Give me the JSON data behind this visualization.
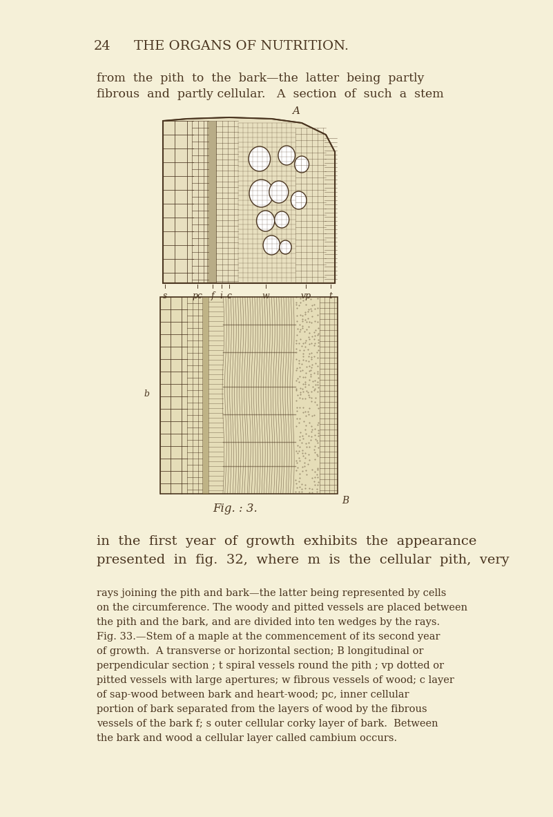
{
  "background_color": "#f5f0d8",
  "page_color": "#ede8c8",
  "text_color": "#4a3520",
  "page_number": "24",
  "header": "THE ORGANS OF NUTRITION.",
  "top_text_line1": "from  the  pith  to  the  bark—the  latter  being  partly",
  "top_text_line2": "fibrous  and  partly cellular.   A  section  of  such  a  stem",
  "fig_caption": "Fig. : 3.",
  "fig_label_B": "B",
  "fig_label_A": "A",
  "bottom_text_line1": "in  the  first  year  of  growth  exhibits  the  appearance",
  "bottom_text_line2": "presented  in  fig.  32,  where  m  is  the  cellular  pith,  very",
  "small_text": [
    "rays joining the pith and bark—the latter being represented by cells",
    "on the circumference. The woody and pitted vessels are placed between",
    "the pith and the bark, and are divided into ten wedges by the rays.",
    "Fig. 33.—Stem of a maple at the commencement of its second year",
    "of growth.  A transverse or horizontal section; B longitudinal or",
    "perpendicular section ; t spiral vessels round the pith ; vp dotted or",
    "pitted vessels with large apertures; w fibrous vessels of wood; c layer",
    "of sap-wood between bark and heart-wood; pc, inner cellular",
    "portion of bark separated from the layers of wood by the fibrous",
    "vessels of the bark f; s outer cellular corky layer of bark.  Between",
    "the bark and wood a cellular layer called cambium occurs."
  ],
  "label_s": "s",
  "label_pc": "pc",
  "label_f": "f",
  "label_i": "i",
  "label_c": "c",
  "label_w": "w",
  "label_vp": "vp",
  "label_t": "t",
  "label_b_side": "b"
}
